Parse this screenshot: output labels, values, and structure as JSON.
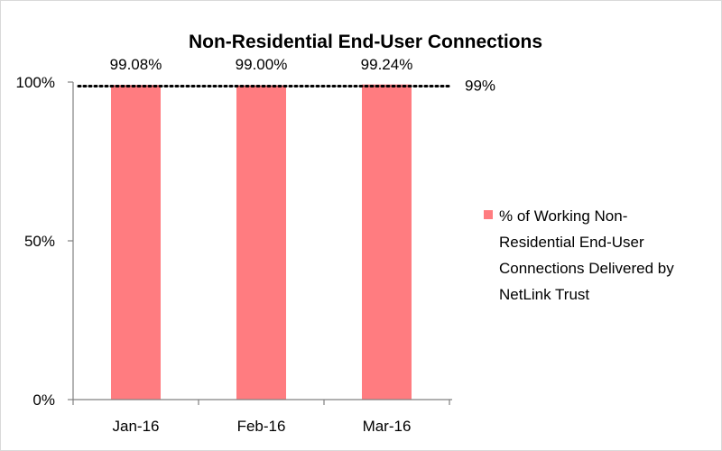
{
  "chart_data": {
    "type": "bar",
    "title": "Non-Residential End-User Connections",
    "categories": [
      "Jan-16",
      "Feb-16",
      "Mar-16"
    ],
    "series": [
      {
        "name": "% of Working Non-Residential End-User Connections Delivered by NetLink Trust",
        "values": [
          99.08,
          99.0,
          99.24
        ],
        "labels": [
          "99.08%",
          "99.00%",
          "99.24%"
        ],
        "color": "#ff7c80"
      }
    ],
    "ylim": [
      0,
      100
    ],
    "yticks": [
      0,
      50,
      100
    ],
    "ytick_labels": [
      "0%",
      "50%",
      "100%"
    ],
    "target_line": {
      "value": 99,
      "label": "99%",
      "style": "dotted",
      "color": "#000000"
    },
    "xlabel": "",
    "ylabel": "",
    "grid": false,
    "legend_position": "right",
    "legend_lines": [
      "% of Working Non-",
      "Residential End-User",
      "Connections Delivered by",
      "NetLink Trust"
    ]
  }
}
